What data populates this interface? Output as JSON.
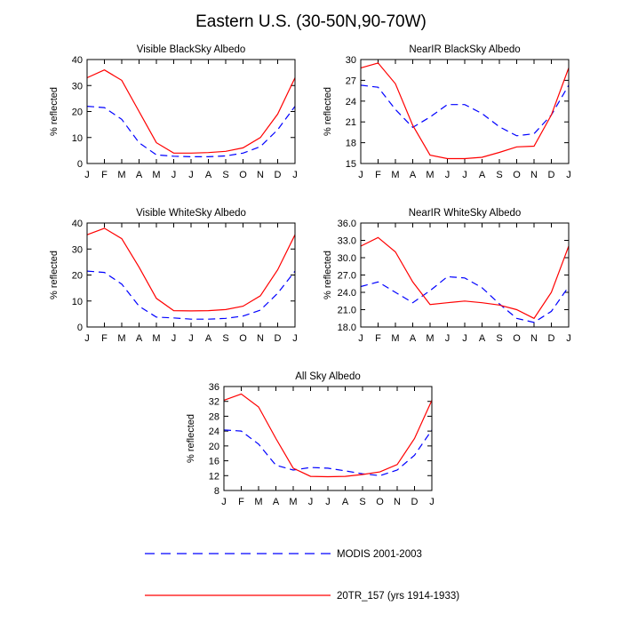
{
  "title": "Eastern U.S. (30-50N,90-70W)",
  "series_styles": {
    "MODIS 2001-2003": {
      "color": "#0000ff",
      "dash": "8,5"
    },
    "20TR_157 (yrs 1914-1933)": {
      "color": "#ff0000",
      "dash": ""
    }
  },
  "legend": [
    {
      "label": "MODIS 2001-2003",
      "color": "#0000ff",
      "dash": "8,5"
    },
    {
      "label": "20TR_157 (yrs 1914-1933)",
      "color": "#ff0000",
      "dash": ""
    }
  ],
  "chart_data": [
    {
      "type": "line",
      "title": "Visible BlackSky Albedo",
      "ylabel": "% reflected",
      "categories": [
        "J",
        "F",
        "M",
        "A",
        "M",
        "J",
        "J",
        "A",
        "S",
        "O",
        "N",
        "D",
        "J"
      ],
      "ylim": [
        0,
        40
      ],
      "yticks": [
        "0",
        "10",
        "20",
        "30",
        "40"
      ],
      "series": [
        {
          "name": "MODIS 2001-2003",
          "values": [
            22.0,
            21.5,
            17.0,
            8.0,
            3.3,
            2.8,
            2.6,
            2.6,
            2.9,
            4.0,
            6.5,
            13.0,
            22.0
          ]
        },
        {
          "name": "20TR_157 (yrs 1914-1933)",
          "values": [
            33.0,
            36.0,
            32.0,
            20.0,
            8.0,
            4.0,
            4.0,
            4.2,
            4.7,
            6.0,
            10.0,
            19.0,
            33.0
          ]
        }
      ]
    },
    {
      "type": "line",
      "title": "NearIR BlackSky Albedo",
      "ylabel": "% reflected",
      "categories": [
        "J",
        "F",
        "M",
        "A",
        "M",
        "J",
        "J",
        "A",
        "S",
        "O",
        "N",
        "D",
        "J"
      ],
      "ylim": [
        15,
        30
      ],
      "yticks": [
        "15",
        "18",
        "21",
        "24",
        "27",
        "30"
      ],
      "series": [
        {
          "name": "MODIS 2001-2003",
          "values": [
            26.3,
            26.0,
            22.8,
            20.2,
            21.7,
            23.5,
            23.5,
            22.2,
            20.3,
            19.0,
            19.3,
            22.0,
            26.3
          ]
        },
        {
          "name": "20TR_157 (yrs 1914-1933)",
          "values": [
            28.8,
            29.5,
            26.5,
            20.5,
            16.2,
            15.7,
            15.7,
            15.9,
            16.6,
            17.4,
            17.5,
            22.0,
            28.8
          ]
        }
      ]
    },
    {
      "type": "line",
      "title": "Visible WhiteSky Albedo",
      "ylabel": "% reflected",
      "categories": [
        "J",
        "F",
        "M",
        "A",
        "M",
        "J",
        "J",
        "A",
        "S",
        "O",
        "N",
        "D",
        "J"
      ],
      "ylim": [
        0,
        40
      ],
      "yticks": [
        "0",
        "10",
        "20",
        "30",
        "40"
      ],
      "series": [
        {
          "name": "MODIS 2001-2003",
          "values": [
            21.5,
            21.0,
            16.5,
            8.0,
            3.8,
            3.5,
            3.0,
            3.0,
            3.3,
            4.2,
            6.5,
            13.0,
            21.5
          ]
        },
        {
          "name": "20TR_157 (yrs 1914-1933)",
          "values": [
            35.5,
            38.0,
            34.0,
            23.0,
            11.0,
            6.3,
            6.2,
            6.3,
            6.7,
            8.0,
            12.0,
            22.0,
            35.5
          ]
        }
      ]
    },
    {
      "type": "line",
      "title": "NearIR WhiteSky Albedo",
      "ylabel": "% reflected",
      "categories": [
        "J",
        "F",
        "M",
        "A",
        "M",
        "J",
        "J",
        "A",
        "S",
        "O",
        "N",
        "D",
        "J"
      ],
      "ylim": [
        18,
        36
      ],
      "yticks": [
        "18.0",
        "21.0",
        "24.0",
        "27.0",
        "30.0",
        "33.0",
        "36.0"
      ],
      "series": [
        {
          "name": "MODIS 2001-2003",
          "values": [
            25.0,
            25.8,
            24.0,
            22.2,
            24.3,
            26.7,
            26.5,
            24.8,
            22.0,
            19.5,
            18.8,
            20.7,
            25.0
          ]
        },
        {
          "name": "20TR_157 (yrs 1914-1933)",
          "values": [
            32.0,
            33.5,
            31.0,
            25.8,
            21.9,
            22.2,
            22.5,
            22.2,
            21.8,
            21.0,
            19.5,
            24.0,
            32.0
          ]
        }
      ]
    },
    {
      "type": "line",
      "title": "All Sky Albedo",
      "ylabel": "% reflected",
      "categories": [
        "J",
        "F",
        "M",
        "A",
        "M",
        "J",
        "J",
        "A",
        "S",
        "O",
        "N",
        "D",
        "J"
      ],
      "ylim": [
        8,
        36
      ],
      "yticks": [
        "8",
        "12",
        "16",
        "20",
        "24",
        "28",
        "32",
        "36"
      ],
      "series": [
        {
          "name": "MODIS 2001-2003",
          "values": [
            24.3,
            24.0,
            20.5,
            14.8,
            13.5,
            14.2,
            14.0,
            13.3,
            12.5,
            12.0,
            13.5,
            17.5,
            24.3
          ]
        },
        {
          "name": "20TR_157 (yrs 1914-1933)",
          "values": [
            32.3,
            34.0,
            30.5,
            22.0,
            14.0,
            11.8,
            11.7,
            11.8,
            12.3,
            13.0,
            15.0,
            22.0,
            32.3
          ]
        }
      ]
    }
  ]
}
